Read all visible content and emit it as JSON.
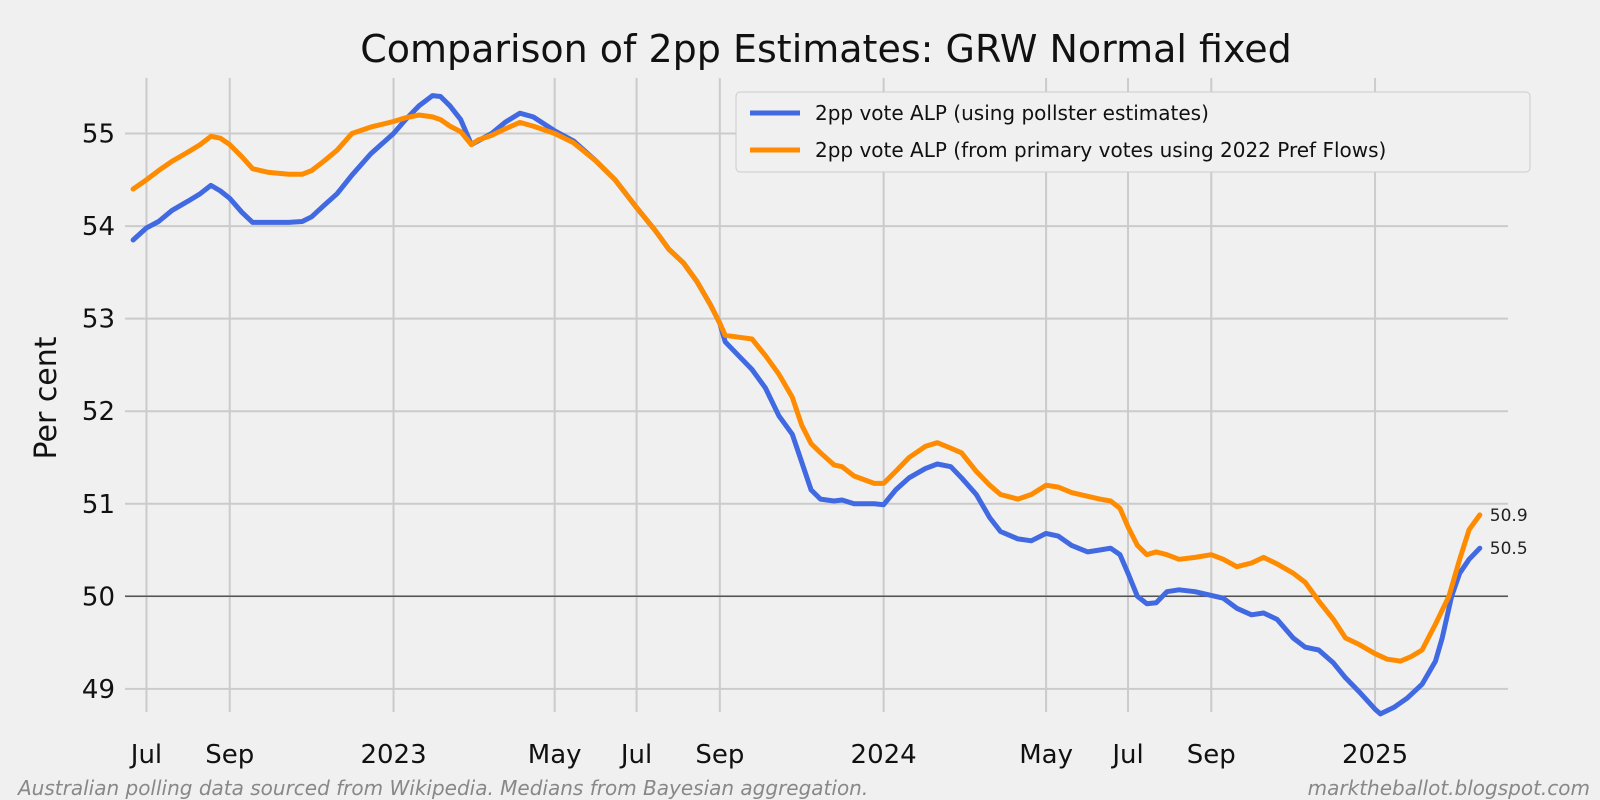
{
  "chart_data": {
    "type": "line",
    "title": "Comparison of 2pp Estimates: GRW Normal fixed",
    "xlabel": "",
    "ylabel": "Per cent",
    "xlim": [
      "2022-06-15",
      "2025-04-10"
    ],
    "ylim": [
      48.75,
      55.6
    ],
    "grid": true,
    "legend_position": "top-right",
    "reference_line": 50,
    "x_ticks": [
      {
        "date": "2022-07-01",
        "label": "Jul"
      },
      {
        "date": "2022-09-01",
        "label": "Sep"
      },
      {
        "date": "2023-01-01",
        "label": "2023"
      },
      {
        "date": "2023-05-01",
        "label": "May"
      },
      {
        "date": "2023-07-01",
        "label": "Jul"
      },
      {
        "date": "2023-09-01",
        "label": "Sep"
      },
      {
        "date": "2024-01-01",
        "label": "2024"
      },
      {
        "date": "2024-05-01",
        "label": "May"
      },
      {
        "date": "2024-07-01",
        "label": "Jul"
      },
      {
        "date": "2024-09-01",
        "label": "Sep"
      },
      {
        "date": "2025-01-01",
        "label": "2025"
      }
    ],
    "y_ticks": [
      49,
      50,
      51,
      52,
      53,
      54,
      55
    ],
    "series": [
      {
        "name": "2pp vote ALP (using pollster estimates)",
        "color": "#4169e1",
        "end_label": "50.5",
        "points": [
          [
            "2022-06-21",
            53.85
          ],
          [
            "2022-07-01",
            53.98
          ],
          [
            "2022-07-10",
            54.05
          ],
          [
            "2022-07-20",
            54.17
          ],
          [
            "2022-08-01",
            54.27
          ],
          [
            "2022-08-10",
            54.35
          ],
          [
            "2022-08-18",
            54.44
          ],
          [
            "2022-08-25",
            54.38
          ],
          [
            "2022-09-01",
            54.3
          ],
          [
            "2022-09-10",
            54.15
          ],
          [
            "2022-09-18",
            54.04
          ],
          [
            "2022-09-30",
            54.04
          ],
          [
            "2022-10-15",
            54.04
          ],
          [
            "2022-10-25",
            54.05
          ],
          [
            "2022-11-01",
            54.1
          ],
          [
            "2022-11-10",
            54.22
          ],
          [
            "2022-11-20",
            54.35
          ],
          [
            "2022-12-01",
            54.55
          ],
          [
            "2022-12-15",
            54.78
          ],
          [
            "2023-01-01",
            55.0
          ],
          [
            "2023-01-10",
            55.15
          ],
          [
            "2023-01-20",
            55.3
          ],
          [
            "2023-01-30",
            55.41
          ],
          [
            "2023-02-05",
            55.4
          ],
          [
            "2023-02-12",
            55.3
          ],
          [
            "2023-02-20",
            55.15
          ],
          [
            "2023-02-28",
            54.88
          ],
          [
            "2023-03-05",
            54.92
          ],
          [
            "2023-03-15",
            55.0
          ],
          [
            "2023-03-25",
            55.12
          ],
          [
            "2023-04-05",
            55.22
          ],
          [
            "2023-04-15",
            55.18
          ],
          [
            "2023-05-01",
            55.03
          ],
          [
            "2023-05-15",
            54.92
          ],
          [
            "2023-06-01",
            54.7
          ],
          [
            "2023-06-15",
            54.5
          ],
          [
            "2023-07-01",
            54.2
          ],
          [
            "2023-07-15",
            53.95
          ],
          [
            "2023-07-25",
            53.75
          ],
          [
            "2023-08-05",
            53.6
          ],
          [
            "2023-08-15",
            53.4
          ],
          [
            "2023-08-25",
            53.15
          ],
          [
            "2023-09-01",
            52.95
          ],
          [
            "2023-09-05",
            52.75
          ],
          [
            "2023-09-15",
            52.6
          ],
          [
            "2023-09-25",
            52.45
          ],
          [
            "2023-10-05",
            52.25
          ],
          [
            "2023-10-15",
            51.95
          ],
          [
            "2023-10-25",
            51.75
          ],
          [
            "2023-11-01",
            51.45
          ],
          [
            "2023-11-08",
            51.15
          ],
          [
            "2023-11-15",
            51.05
          ],
          [
            "2023-11-25",
            51.03
          ],
          [
            "2023-12-01",
            51.04
          ],
          [
            "2023-12-10",
            51.0
          ],
          [
            "2023-12-25",
            51.0
          ],
          [
            "2024-01-01",
            50.99
          ],
          [
            "2024-01-10",
            51.15
          ],
          [
            "2024-01-20",
            51.28
          ],
          [
            "2024-02-01",
            51.38
          ],
          [
            "2024-02-10",
            51.43
          ],
          [
            "2024-02-20",
            51.4
          ],
          [
            "2024-02-28",
            51.28
          ],
          [
            "2024-03-10",
            51.1
          ],
          [
            "2024-03-20",
            50.85
          ],
          [
            "2024-03-28",
            50.7
          ],
          [
            "2024-04-10",
            50.62
          ],
          [
            "2024-04-20",
            50.6
          ],
          [
            "2024-05-01",
            50.68
          ],
          [
            "2024-05-10",
            50.65
          ],
          [
            "2024-05-20",
            50.55
          ],
          [
            "2024-06-01",
            50.48
          ],
          [
            "2024-06-10",
            50.5
          ],
          [
            "2024-06-18",
            50.52
          ],
          [
            "2024-06-25",
            50.45
          ],
          [
            "2024-07-01",
            50.25
          ],
          [
            "2024-07-08",
            50.0
          ],
          [
            "2024-07-15",
            49.92
          ],
          [
            "2024-07-22",
            49.93
          ],
          [
            "2024-07-30",
            50.05
          ],
          [
            "2024-08-08",
            50.07
          ],
          [
            "2024-08-20",
            50.05
          ],
          [
            "2024-09-01",
            50.01
          ],
          [
            "2024-09-10",
            49.98
          ],
          [
            "2024-09-20",
            49.87
          ],
          [
            "2024-10-01",
            49.8
          ],
          [
            "2024-10-10",
            49.82
          ],
          [
            "2024-10-20",
            49.75
          ],
          [
            "2024-11-01",
            49.55
          ],
          [
            "2024-11-10",
            49.45
          ],
          [
            "2024-11-20",
            49.42
          ],
          [
            "2024-12-01",
            49.28
          ],
          [
            "2024-12-10",
            49.12
          ],
          [
            "2024-12-20",
            48.97
          ],
          [
            "2025-01-01",
            48.78
          ],
          [
            "2025-01-05",
            48.73
          ],
          [
            "2025-01-15",
            48.8
          ],
          [
            "2025-01-25",
            48.9
          ],
          [
            "2025-02-05",
            49.05
          ],
          [
            "2025-02-15",
            49.3
          ],
          [
            "2025-02-20",
            49.55
          ],
          [
            "2025-02-27",
            50.0
          ],
          [
            "2025-03-05",
            50.25
          ],
          [
            "2025-03-12",
            50.4
          ],
          [
            "2025-03-20",
            50.52
          ]
        ]
      },
      {
        "name": "2pp vote ALP (from primary votes using 2022 Pref Flows)",
        "color": "#ff8c00",
        "end_label": "50.9",
        "points": [
          [
            "2022-06-21",
            54.4
          ],
          [
            "2022-07-01",
            54.5
          ],
          [
            "2022-07-10",
            54.6
          ],
          [
            "2022-07-20",
            54.7
          ],
          [
            "2022-08-01",
            54.8
          ],
          [
            "2022-08-10",
            54.88
          ],
          [
            "2022-08-18",
            54.97
          ],
          [
            "2022-08-25",
            54.95
          ],
          [
            "2022-09-01",
            54.88
          ],
          [
            "2022-09-10",
            54.75
          ],
          [
            "2022-09-18",
            54.62
          ],
          [
            "2022-09-30",
            54.58
          ],
          [
            "2022-10-15",
            54.56
          ],
          [
            "2022-10-25",
            54.56
          ],
          [
            "2022-11-01",
            54.6
          ],
          [
            "2022-11-10",
            54.7
          ],
          [
            "2022-11-20",
            54.82
          ],
          [
            "2022-12-01",
            55.0
          ],
          [
            "2022-12-15",
            55.07
          ],
          [
            "2023-01-01",
            55.13
          ],
          [
            "2023-01-10",
            55.17
          ],
          [
            "2023-01-20",
            55.2
          ],
          [
            "2023-01-30",
            55.18
          ],
          [
            "2023-02-05",
            55.15
          ],
          [
            "2023-02-12",
            55.08
          ],
          [
            "2023-02-20",
            55.02
          ],
          [
            "2023-02-28",
            54.88
          ],
          [
            "2023-03-05",
            54.93
          ],
          [
            "2023-03-15",
            54.98
          ],
          [
            "2023-03-25",
            55.05
          ],
          [
            "2023-04-05",
            55.12
          ],
          [
            "2023-04-15",
            55.08
          ],
          [
            "2023-05-01",
            55.0
          ],
          [
            "2023-05-15",
            54.9
          ],
          [
            "2023-06-01",
            54.7
          ],
          [
            "2023-06-15",
            54.5
          ],
          [
            "2023-07-01",
            54.2
          ],
          [
            "2023-07-15",
            53.95
          ],
          [
            "2023-07-25",
            53.75
          ],
          [
            "2023-08-05",
            53.6
          ],
          [
            "2023-08-15",
            53.4
          ],
          [
            "2023-08-25",
            53.15
          ],
          [
            "2023-09-01",
            52.95
          ],
          [
            "2023-09-05",
            52.82
          ],
          [
            "2023-09-15",
            52.8
          ],
          [
            "2023-09-25",
            52.78
          ],
          [
            "2023-10-05",
            52.6
          ],
          [
            "2023-10-15",
            52.4
          ],
          [
            "2023-10-25",
            52.15
          ],
          [
            "2023-11-01",
            51.85
          ],
          [
            "2023-11-08",
            51.65
          ],
          [
            "2023-11-15",
            51.55
          ],
          [
            "2023-11-25",
            51.42
          ],
          [
            "2023-12-01",
            51.4
          ],
          [
            "2023-12-10",
            51.3
          ],
          [
            "2023-12-25",
            51.22
          ],
          [
            "2024-01-01",
            51.22
          ],
          [
            "2024-01-10",
            51.35
          ],
          [
            "2024-01-20",
            51.5
          ],
          [
            "2024-02-01",
            51.62
          ],
          [
            "2024-02-10",
            51.66
          ],
          [
            "2024-02-20",
            51.6
          ],
          [
            "2024-02-28",
            51.55
          ],
          [
            "2024-03-10",
            51.35
          ],
          [
            "2024-03-20",
            51.2
          ],
          [
            "2024-03-28",
            51.1
          ],
          [
            "2024-04-10",
            51.05
          ],
          [
            "2024-04-20",
            51.1
          ],
          [
            "2024-05-01",
            51.2
          ],
          [
            "2024-05-10",
            51.18
          ],
          [
            "2024-05-20",
            51.12
          ],
          [
            "2024-06-01",
            51.08
          ],
          [
            "2024-06-10",
            51.05
          ],
          [
            "2024-06-18",
            51.03
          ],
          [
            "2024-06-25",
            50.95
          ],
          [
            "2024-07-01",
            50.75
          ],
          [
            "2024-07-08",
            50.55
          ],
          [
            "2024-07-15",
            50.45
          ],
          [
            "2024-07-22",
            50.48
          ],
          [
            "2024-07-30",
            50.45
          ],
          [
            "2024-08-08",
            50.4
          ],
          [
            "2024-08-20",
            50.42
          ],
          [
            "2024-09-01",
            50.45
          ],
          [
            "2024-09-10",
            50.4
          ],
          [
            "2024-09-20",
            50.32
          ],
          [
            "2024-10-01",
            50.36
          ],
          [
            "2024-10-10",
            50.42
          ],
          [
            "2024-10-20",
            50.35
          ],
          [
            "2024-11-01",
            50.25
          ],
          [
            "2024-11-10",
            50.15
          ],
          [
            "2024-11-20",
            49.95
          ],
          [
            "2024-12-01",
            49.75
          ],
          [
            "2024-12-10",
            49.55
          ],
          [
            "2024-12-20",
            49.48
          ],
          [
            "2025-01-01",
            49.38
          ],
          [
            "2025-01-10",
            49.32
          ],
          [
            "2025-01-20",
            49.3
          ],
          [
            "2025-01-28",
            49.35
          ],
          [
            "2025-02-05",
            49.42
          ],
          [
            "2025-02-15",
            49.7
          ],
          [
            "2025-02-25",
            50.0
          ],
          [
            "2025-03-05",
            50.4
          ],
          [
            "2025-03-12",
            50.72
          ],
          [
            "2025-03-20",
            50.88
          ]
        ]
      }
    ]
  },
  "footer": {
    "left": "Australian polling data sourced from Wikipedia. Medians from Bayesian aggregation.",
    "right": "marktheballot.blogspot.com"
  }
}
